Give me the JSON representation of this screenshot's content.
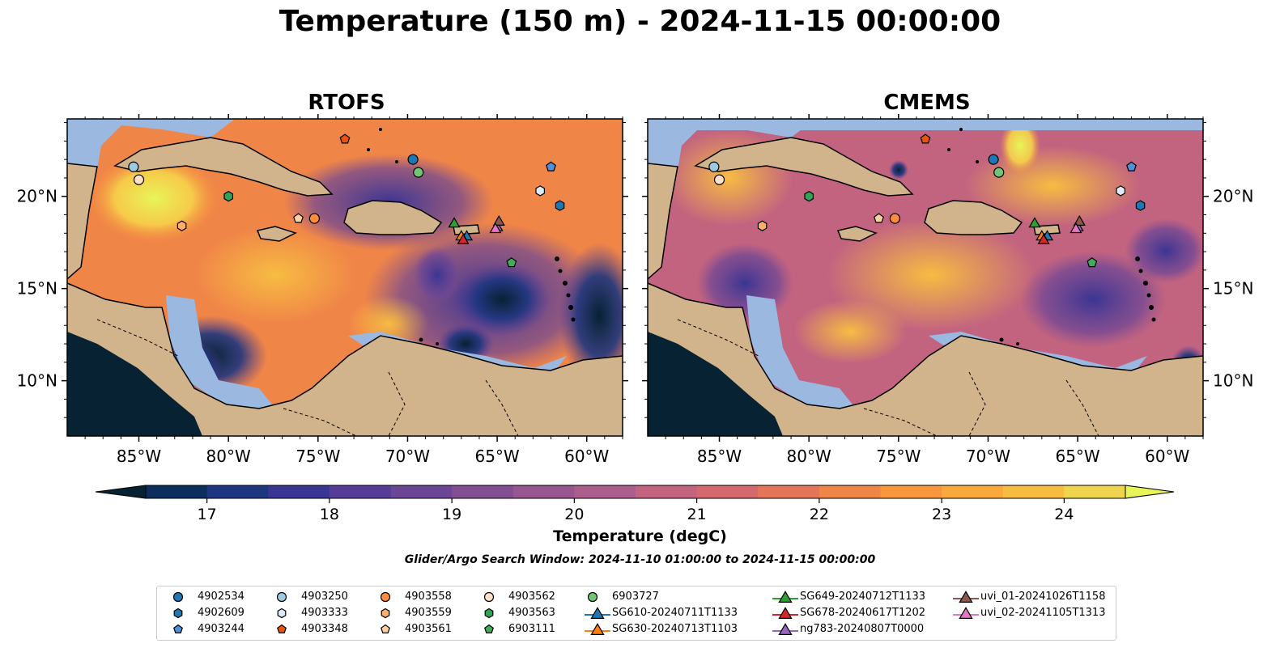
{
  "title": "Temperature (150 m) - 2024-11-15 00:00:00",
  "panels": [
    {
      "title": "RTOFS"
    },
    {
      "title": "CMEMS"
    }
  ],
  "map": {
    "lon_range": [
      -89,
      -58
    ],
    "lat_range": [
      7,
      24.2
    ],
    "x_ticks": [
      {
        "value": -85,
        "label": "85°W"
      },
      {
        "value": -80,
        "label": "80°W"
      },
      {
        "value": -75,
        "label": "75°W"
      },
      {
        "value": -70,
        "label": "70°W"
      },
      {
        "value": -65,
        "label": "65°W"
      },
      {
        "value": -60,
        "label": "60°W"
      }
    ],
    "y_ticks": [
      {
        "value": 10,
        "label": "10°N"
      },
      {
        "value": 15,
        "label": "15°N"
      },
      {
        "value": 20,
        "label": "20°N"
      }
    ],
    "colors": {
      "land": "#d2b48c",
      "shelf": "#9ab8e0",
      "coast": "#000000"
    }
  },
  "colorbar": {
    "label": "Temperature (degC)",
    "min": 16.5,
    "max": 24.5,
    "step": 0.5,
    "ticks": [
      "17",
      "18",
      "19",
      "20",
      "21",
      "22",
      "23",
      "24"
    ],
    "tick_values": [
      17,
      18,
      19,
      20,
      21,
      22,
      23,
      24
    ],
    "colors": [
      "#062233",
      "#0b2e5c",
      "#1f3680",
      "#3a3593",
      "#553c96",
      "#6b4596",
      "#824e93",
      "#985691",
      "#ad5f8b",
      "#c26380",
      "#d46a6e",
      "#e47558",
      "#f08548",
      "#f7963d",
      "#f9a83c",
      "#f7bc42",
      "#eed44f",
      "#e8f558"
    ]
  },
  "window_note": "Glider/Argo Search Window: 2024-11-10 01:00:00 to 2024-11-15 00:00:00",
  "legend": {
    "items": [
      {
        "label": "4902534",
        "marker": "circle",
        "color": "#1f77b4"
      },
      {
        "label": "4902609",
        "marker": "hexagon",
        "color": "#1f77b4"
      },
      {
        "label": "4903244",
        "marker": "pentagon",
        "color": "#4f90d9"
      },
      {
        "label": "4903250",
        "marker": "circle",
        "color": "#9ecae1"
      },
      {
        "label": "4903333",
        "marker": "hexagon",
        "color": "#deebf7"
      },
      {
        "label": "4903348",
        "marker": "pentagon",
        "color": "#e6550d"
      },
      {
        "label": "4903558",
        "marker": "circle",
        "color": "#fd8d3c"
      },
      {
        "label": "4903559",
        "marker": "hexagon",
        "color": "#fdae6b"
      },
      {
        "label": "4903561",
        "marker": "pentagon",
        "color": "#fdd0a2"
      },
      {
        "label": "4903562",
        "marker": "circle",
        "color": "#fde0c5"
      },
      {
        "label": "4903563",
        "marker": "hexagon",
        "color": "#31a354"
      },
      {
        "label": "6903111",
        "marker": "pentagon",
        "color": "#41ab5d"
      },
      {
        "label": "6903727",
        "marker": "circle",
        "color": "#74c476"
      },
      {
        "label": "SG610-20240711T1133",
        "marker": "triangle",
        "color": "#1f77b4"
      },
      {
        "label": "SG630-20240713T1103",
        "marker": "triangle",
        "color": "#ff7f0e"
      },
      {
        "label": "SG649-20240712T1133",
        "marker": "triangle",
        "color": "#2ca02c"
      },
      {
        "label": "SG678-20240617T1202",
        "marker": "triangle",
        "color": "#d62728"
      },
      {
        "label": "ng783-20240807T0000",
        "marker": "triangle",
        "color": "#9467bd"
      },
      {
        "label": "uvi_01-20241026T1158",
        "marker": "triangle",
        "color": "#8c564b"
      },
      {
        "label": "uvi_02-20241105T1313",
        "marker": "triangle",
        "color": "#e377c2"
      }
    ]
  },
  "observations": [
    {
      "label": "4902534",
      "lon": -69.7,
      "lat": 22.0
    },
    {
      "label": "4902609",
      "lon": -61.5,
      "lat": 19.5
    },
    {
      "label": "4903244",
      "lon": -62.0,
      "lat": 21.6
    },
    {
      "label": "4903250",
      "lon": -85.3,
      "lat": 21.6
    },
    {
      "label": "4903333",
      "lon": -62.6,
      "lat": 20.3
    },
    {
      "label": "4903348",
      "lon": -73.5,
      "lat": 23.1
    },
    {
      "label": "4903558",
      "lon": -75.2,
      "lat": 18.8
    },
    {
      "label": "4903559",
      "lon": -82.6,
      "lat": 18.4
    },
    {
      "label": "4903561",
      "lon": -76.1,
      "lat": 18.8
    },
    {
      "label": "4903562",
      "lon": -85.0,
      "lat": 20.9
    },
    {
      "label": "4903563",
      "lon": -80.0,
      "lat": 20.0
    },
    {
      "label": "6903111",
      "lon": -64.2,
      "lat": 16.4
    },
    {
      "label": "6903727",
      "lon": -69.4,
      "lat": 21.3
    },
    {
      "label": "SG610-20240711T1133",
      "lon": -66.7,
      "lat": 17.8
    },
    {
      "label": "SG630-20240713T1103",
      "lon": -67.0,
      "lat": 17.8
    },
    {
      "label": "SG649-20240712T1133",
      "lon": -67.4,
      "lat": 18.5
    },
    {
      "label": "SG678-20240617T1202",
      "lon": -66.9,
      "lat": 17.6
    },
    {
      "label": "ng783-20240807T0000",
      "lon": -65.0,
      "lat": 18.3
    },
    {
      "label": "uvi_01-20241026T1158",
      "lon": -64.9,
      "lat": 18.6
    },
    {
      "label": "uvi_02-20241105T1313",
      "lon": -65.1,
      "lat": 18.2
    }
  ]
}
